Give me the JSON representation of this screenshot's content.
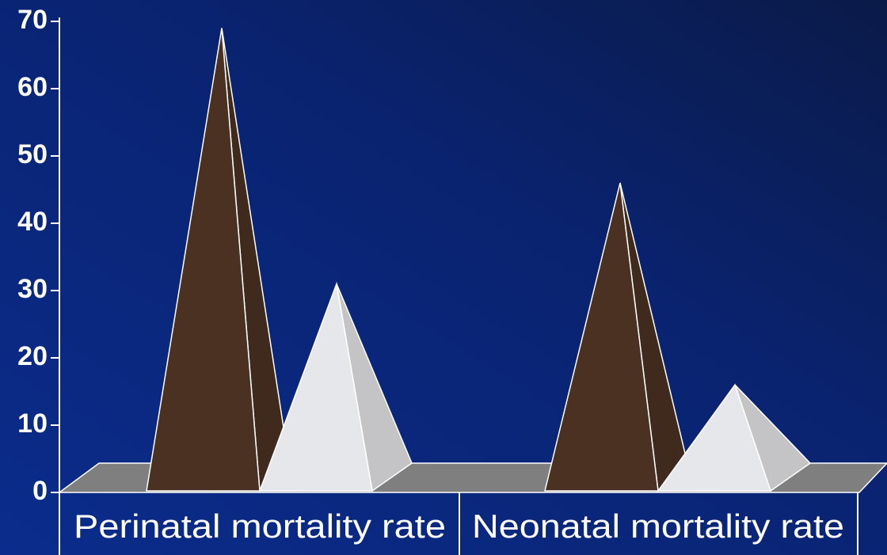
{
  "chart_data": {
    "type": "pyramid3d",
    "categories": [
      "Perinatal mortality rate",
      "Neonatal mortality rate"
    ],
    "series": [
      {
        "color": "#4a3122",
        "values": [
          69,
          46
        ]
      },
      {
        "color": "#e6e7ea",
        "values": [
          31,
          16
        ]
      }
    ],
    "ylim": [
      0,
      70
    ],
    "yticks": [
      0,
      10,
      20,
      30,
      40,
      50,
      60,
      70
    ]
  }
}
